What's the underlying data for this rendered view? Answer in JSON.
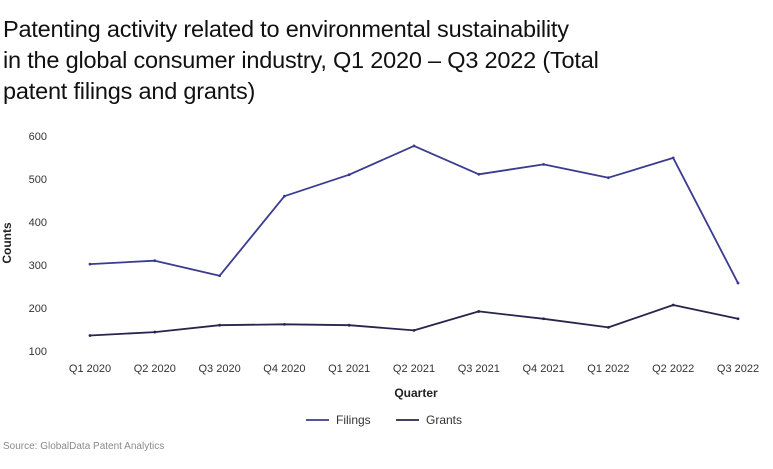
{
  "title": "Patenting activity related to environmental sustainability\nin the global consumer industry, Q1 2020 – Q3 2022 (Total\npatent filings and grants)",
  "source": "Source: GlobalData Patent Analytics",
  "chart_data": {
    "type": "line",
    "categories": [
      "Q1 2020",
      "Q2 2020",
      "Q3 2020",
      "Q4 2020",
      "Q1 2021",
      "Q2 2021",
      "Q3 2021",
      "Q4 2021",
      "Q1 2022",
      "Q2 2022",
      "Q3 2022"
    ],
    "series": [
      {
        "name": "Filings",
        "color": "#3b3b8f",
        "values": [
          302,
          310,
          275,
          460,
          510,
          577,
          511,
          534,
          503,
          549,
          258
        ]
      },
      {
        "name": "Grants",
        "color": "#26264d",
        "values": [
          136,
          144,
          160,
          162,
          160,
          148,
          192,
          175,
          155,
          207,
          175
        ]
      }
    ],
    "yticks": [
      100,
      200,
      300,
      400,
      500,
      600
    ],
    "ylim": [
      100,
      600
    ],
    "xlabel": "Quarter",
    "ylabel": "Counts",
    "grid": false,
    "legend": "bottom-center"
  }
}
